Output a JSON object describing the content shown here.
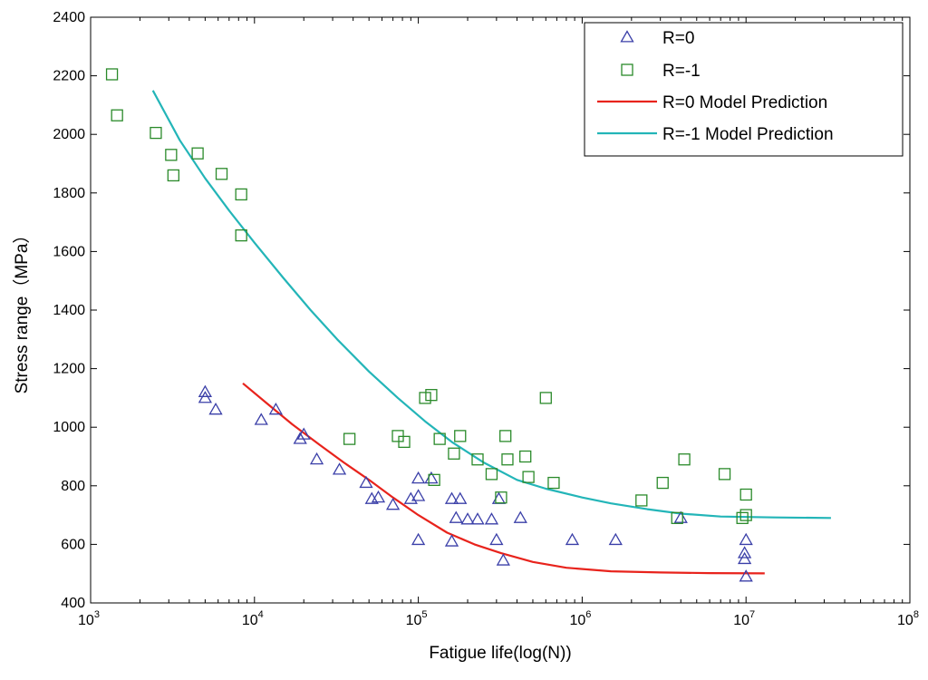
{
  "chart_data": {
    "type": "scatter",
    "title": "",
    "xlabel": "Fatigue life(log(N))",
    "ylabel": "Stress range（MPa）",
    "x_scale": "log",
    "xlim": [
      1000,
      100000000
    ],
    "ylim": [
      400,
      2400
    ],
    "x_ticks": [
      {
        "value": 1000,
        "base": "10",
        "exp": "3"
      },
      {
        "value": 10000,
        "base": "10",
        "exp": "4"
      },
      {
        "value": 100000,
        "base": "10",
        "exp": "5"
      },
      {
        "value": 1000000,
        "base": "10",
        "exp": "6"
      },
      {
        "value": 10000000,
        "base": "10",
        "exp": "7"
      },
      {
        "value": 100000000,
        "base": "10",
        "exp": "8"
      }
    ],
    "y_ticks": [
      400,
      600,
      800,
      1000,
      1200,
      1400,
      1600,
      1800,
      2000,
      2200,
      2400
    ],
    "y_tick_labels": [
      "400",
      "600",
      "800",
      "1000",
      "1200",
      "1400",
      "1600",
      "1800",
      "2000",
      "2200",
      "2400"
    ],
    "grid": false,
    "legend_position": "top-right",
    "legend": [
      "R=0",
      "R=-1",
      "R=0 Model Prediction",
      "R=-1 Model Prediction"
    ],
    "series": [
      {
        "name": "R=0",
        "kind": "scatter",
        "marker": "triangle",
        "color": "#3a3fa8",
        "points": [
          [
            5000,
            1120
          ],
          [
            5000,
            1100
          ],
          [
            5800,
            1060
          ],
          [
            11000,
            1025
          ],
          [
            13500,
            1060
          ],
          [
            19000,
            960
          ],
          [
            20000,
            975
          ],
          [
            24000,
            890
          ],
          [
            33000,
            855
          ],
          [
            48000,
            810
          ],
          [
            52000,
            755
          ],
          [
            57000,
            760
          ],
          [
            70000,
            735
          ],
          [
            90000,
            755
          ],
          [
            100000,
            825
          ],
          [
            100000,
            765
          ],
          [
            100000,
            615
          ],
          [
            120000,
            825
          ],
          [
            160000,
            755
          ],
          [
            160000,
            610
          ],
          [
            170000,
            690
          ],
          [
            180000,
            755
          ],
          [
            200000,
            685
          ],
          [
            230000,
            685
          ],
          [
            280000,
            685
          ],
          [
            300000,
            615
          ],
          [
            310000,
            755
          ],
          [
            330000,
            545
          ],
          [
            420000,
            690
          ],
          [
            870000,
            615
          ],
          [
            1600000,
            615
          ],
          [
            4000000,
            690
          ],
          [
            9800000,
            570
          ],
          [
            9800000,
            550
          ],
          [
            10000000,
            615
          ],
          [
            10000000,
            490
          ]
        ]
      },
      {
        "name": "R=-1",
        "kind": "scatter",
        "marker": "square",
        "color": "#2a8a2a",
        "points": [
          [
            1350,
            2205
          ],
          [
            1450,
            2065
          ],
          [
            2500,
            2005
          ],
          [
            3100,
            1930
          ],
          [
            3200,
            1860
          ],
          [
            4500,
            1935
          ],
          [
            6300,
            1865
          ],
          [
            8300,
            1795
          ],
          [
            8300,
            1655
          ],
          [
            38000,
            960
          ],
          [
            75000,
            970
          ],
          [
            82000,
            950
          ],
          [
            110000,
            1100
          ],
          [
            120000,
            1110
          ],
          [
            125000,
            820
          ],
          [
            135000,
            960
          ],
          [
            165000,
            910
          ],
          [
            180000,
            970
          ],
          [
            230000,
            890
          ],
          [
            280000,
            840
          ],
          [
            320000,
            760
          ],
          [
            340000,
            970
          ],
          [
            350000,
            890
          ],
          [
            450000,
            900
          ],
          [
            470000,
            830
          ],
          [
            600000,
            1100
          ],
          [
            670000,
            810
          ],
          [
            2300000,
            750
          ],
          [
            3100000,
            810
          ],
          [
            3800000,
            690
          ],
          [
            4200000,
            890
          ],
          [
            7400000,
            840
          ],
          [
            9500000,
            690
          ],
          [
            10000000,
            700
          ],
          [
            10000000,
            770
          ]
        ]
      },
      {
        "name": "R=0 Model Prediction",
        "kind": "line",
        "color": "#e8231c",
        "points": [
          [
            8500,
            1150
          ],
          [
            12000,
            1080
          ],
          [
            17000,
            1010
          ],
          [
            25000,
            940
          ],
          [
            35000,
            880
          ],
          [
            50000,
            820
          ],
          [
            70000,
            760
          ],
          [
            100000,
            700
          ],
          [
            150000,
            640
          ],
          [
            220000,
            600
          ],
          [
            320000,
            570
          ],
          [
            500000,
            540
          ],
          [
            800000,
            520
          ],
          [
            1500000,
            508
          ],
          [
            3000000,
            504
          ],
          [
            6000000,
            502
          ],
          [
            13000000,
            501
          ]
        ]
      },
      {
        "name": "R=-1 Model Prediction",
        "kind": "line",
        "color": "#23b5b8",
        "points": [
          [
            2400,
            2150
          ],
          [
            3500,
            1980
          ],
          [
            5000,
            1850
          ],
          [
            7000,
            1740
          ],
          [
            10000,
            1630
          ],
          [
            15000,
            1510
          ],
          [
            22000,
            1400
          ],
          [
            32000,
            1300
          ],
          [
            50000,
            1190
          ],
          [
            75000,
            1100
          ],
          [
            110000,
            1020
          ],
          [
            160000,
            950
          ],
          [
            250000,
            880
          ],
          [
            400000,
            820
          ],
          [
            600000,
            790
          ],
          [
            1000000,
            760
          ],
          [
            1500000,
            740
          ],
          [
            2500000,
            720
          ],
          [
            4000000,
            705
          ],
          [
            7000000,
            695
          ],
          [
            15000000,
            692
          ],
          [
            33000000,
            690
          ]
        ]
      }
    ]
  }
}
